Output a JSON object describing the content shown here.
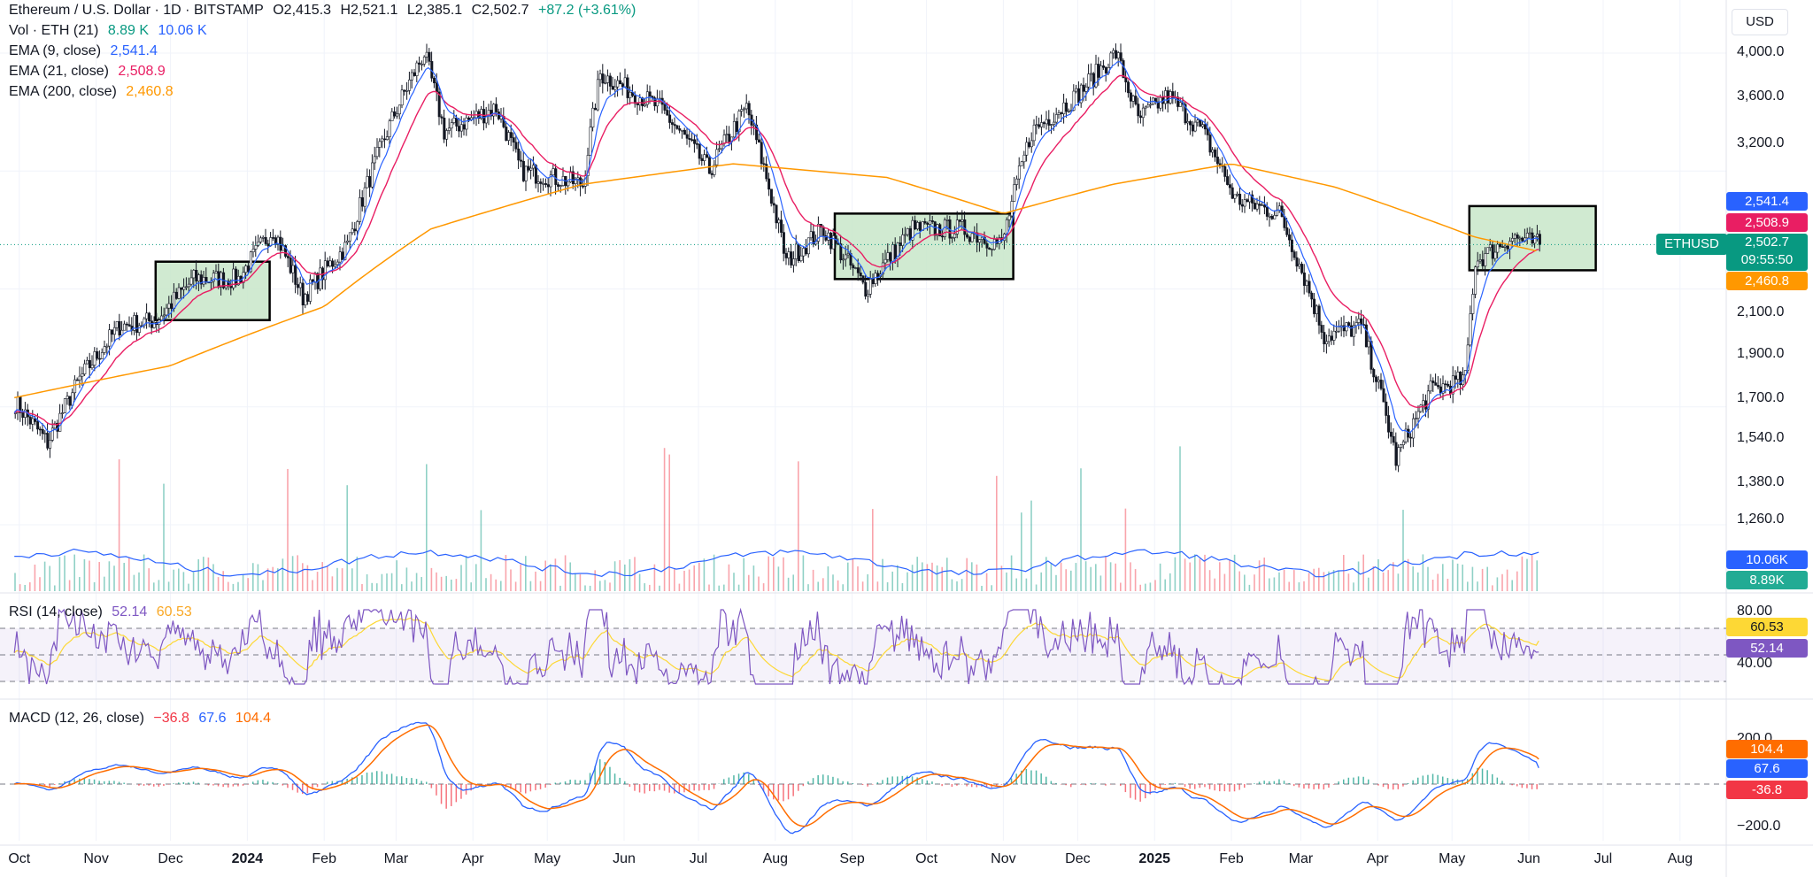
{
  "header": {
    "symbol_line": "Ethereum / U.S. Dollar · 1D · BITSTAMP",
    "open": "O2,415.3",
    "high": "H2,521.1",
    "low": "L2,385.1",
    "close": "C2,502.7",
    "change": "+87.2 (+3.61%)"
  },
  "legend": {
    "vol_label": "Vol · ETH (21)",
    "vol_value": "8.89 K",
    "vol_ma": "10.06 K",
    "ema9_label": "EMA (9, close)",
    "ema9_value": "2,541.4",
    "ema21_label": "EMA (21, close)",
    "ema21_value": "2,508.9",
    "ema200_label": "EMA (200, close)",
    "ema200_value": "2,460.8",
    "rsi_label": "RSI (14, close)",
    "rsi_value": "52.14",
    "rsi_ma": "60.53",
    "macd_label": "MACD (12, 26, close)",
    "macd_hist": "−36.8",
    "macd_line": "67.6",
    "macd_signal": "104.4"
  },
  "currency_button": "USD",
  "ethusd_tag": "ETHUSD",
  "price_badge": {
    "price": "2,502.7",
    "countdown": "09:55:50"
  },
  "badges": {
    "ema9": "2,541.4",
    "ema21": "2,508.9",
    "ema200": "2,460.8",
    "vol_ma": "10.06K",
    "vol": "8.89K",
    "rsi_ma": "60.53",
    "rsi": "52.14",
    "macd_signal": "104.4",
    "macd_line": "67.6",
    "macd_hist": "-36.8"
  },
  "price_axis": [
    "4,000.0",
    "3,600.0",
    "3,200.0",
    "2,100.0",
    "1,900.0",
    "1,700.0",
    "1,540.0",
    "1,380.0",
    "1,260.0"
  ],
  "rsi_axis": [
    "80.00",
    "40.00"
  ],
  "macd_axis": [
    "200.0",
    "−200.0"
  ],
  "time_axis": [
    {
      "label": "Oct",
      "bold": false
    },
    {
      "label": "Nov",
      "bold": false
    },
    {
      "label": "Dec",
      "bold": false
    },
    {
      "label": "2024",
      "bold": true
    },
    {
      "label": "Feb",
      "bold": false
    },
    {
      "label": "Mar",
      "bold": false
    },
    {
      "label": "Apr",
      "bold": false
    },
    {
      "label": "May",
      "bold": false
    },
    {
      "label": "Jun",
      "bold": false
    },
    {
      "label": "Jul",
      "bold": false
    },
    {
      "label": "Aug",
      "bold": false
    },
    {
      "label": "Sep",
      "bold": false
    },
    {
      "label": "Oct",
      "bold": false
    },
    {
      "label": "Nov",
      "bold": false
    },
    {
      "label": "Dec",
      "bold": false
    },
    {
      "label": "2025",
      "bold": true
    },
    {
      "label": "Feb",
      "bold": false
    },
    {
      "label": "Mar",
      "bold": false
    },
    {
      "label": "Apr",
      "bold": false
    },
    {
      "label": "May",
      "bold": false
    },
    {
      "label": "Jun",
      "bold": false
    },
    {
      "label": "Jul",
      "bold": false
    },
    {
      "label": "Aug",
      "bold": false
    }
  ],
  "colors": {
    "up": "#089981",
    "down": "#f23645",
    "ema9": "#2962ff",
    "ema21": "#e91e63",
    "ema200": "#ff9800",
    "rsi": "#7e57c2",
    "rsi_ma": "#fdd835",
    "macd": "#2962ff",
    "signal": "#ff6d00",
    "vol_ma": "#2962ff",
    "box_fill": "#c8e6c9"
  },
  "chart_data": {
    "type": "candlestick",
    "price_range": [
      1260,
      4000
    ],
    "price_points": [
      {
        "date": "2023-09-29",
        "price": 1700
      },
      {
        "date": "2023-10-12",
        "price": 1540
      },
      {
        "date": "2023-10-25",
        "price": 1800
      },
      {
        "date": "2023-11-10",
        "price": 2050
      },
      {
        "date": "2023-11-25",
        "price": 2080
      },
      {
        "date": "2023-12-10",
        "price": 2300
      },
      {
        "date": "2023-12-28",
        "price": 2300
      },
      {
        "date": "2024-01-11",
        "price": 2600
      },
      {
        "date": "2024-01-23",
        "price": 2200
      },
      {
        "date": "2024-02-10",
        "price": 2500
      },
      {
        "date": "2024-02-28",
        "price": 3400
      },
      {
        "date": "2024-03-12",
        "price": 4000
      },
      {
        "date": "2024-03-20",
        "price": 3300
      },
      {
        "date": "2024-04-10",
        "price": 3500
      },
      {
        "date": "2024-04-20",
        "price": 3000
      },
      {
        "date": "2024-05-15",
        "price": 2900
      },
      {
        "date": "2024-05-22",
        "price": 3800
      },
      {
        "date": "2024-06-15",
        "price": 3500
      },
      {
        "date": "2024-07-05",
        "price": 3000
      },
      {
        "date": "2024-07-20",
        "price": 3500
      },
      {
        "date": "2024-08-05",
        "price": 2400
      },
      {
        "date": "2024-08-20",
        "price": 2600
      },
      {
        "date": "2024-09-06",
        "price": 2250
      },
      {
        "date": "2024-09-25",
        "price": 2600
      },
      {
        "date": "2024-10-15",
        "price": 2600
      },
      {
        "date": "2024-10-31",
        "price": 2500
      },
      {
        "date": "2024-11-12",
        "price": 3300
      },
      {
        "date": "2024-11-30",
        "price": 3600
      },
      {
        "date": "2024-12-16",
        "price": 4000
      },
      {
        "date": "2024-12-25",
        "price": 3400
      },
      {
        "date": "2025-01-06",
        "price": 3600
      },
      {
        "date": "2025-01-20",
        "price": 3300
      },
      {
        "date": "2025-02-02",
        "price": 2800
      },
      {
        "date": "2025-02-20",
        "price": 2700
      },
      {
        "date": "2025-03-10",
        "price": 2000
      },
      {
        "date": "2025-03-25",
        "price": 2050
      },
      {
        "date": "2025-04-08",
        "price": 1480
      },
      {
        "date": "2025-04-22",
        "price": 1750
      },
      {
        "date": "2025-05-06",
        "price": 1800
      },
      {
        "date": "2025-05-10",
        "price": 2400
      },
      {
        "date": "2025-05-25",
        "price": 2550
      },
      {
        "date": "2025-06-05",
        "price": 2502.7
      }
    ],
    "ema200_points": [
      {
        "date": "2023-09-29",
        "price": 1720
      },
      {
        "date": "2023-12-01",
        "price": 1860
      },
      {
        "date": "2024-02-01",
        "price": 2150
      },
      {
        "date": "2024-03-15",
        "price": 2600
      },
      {
        "date": "2024-05-15",
        "price": 2900
      },
      {
        "date": "2024-07-15",
        "price": 3050
      },
      {
        "date": "2024-09-15",
        "price": 2950
      },
      {
        "date": "2024-11-01",
        "price": 2700
      },
      {
        "date": "2024-12-15",
        "price": 2900
      },
      {
        "date": "2025-02-01",
        "price": 3050
      },
      {
        "date": "2025-03-15",
        "price": 2880
      },
      {
        "date": "2025-05-10",
        "price": 2550
      },
      {
        "date": "2025-06-05",
        "price": 2460.8
      }
    ],
    "consolidation_boxes": [
      {
        "start": "2023-11-25",
        "end": "2024-01-10",
        "low": 2080,
        "high": 2400
      },
      {
        "start": "2024-08-25",
        "end": "2024-11-05",
        "low": 2300,
        "high": 2700
      },
      {
        "start": "2025-05-08",
        "end": "2025-06-28",
        "low": 2350,
        "high": 2750
      }
    ],
    "rsi_range": [
      0,
      100
    ],
    "rsi_levels": [
      70,
      50,
      30
    ],
    "macd_range": [
      -250,
      250
    ],
    "last_values": {
      "close": 2502.7,
      "ema9": 2541.4,
      "ema21": 2508.9,
      "ema200": 2460.8,
      "rsi": 52.14,
      "rsi_ma": 60.53,
      "macd": 67.6,
      "signal": 104.4,
      "hist": -36.8,
      "volume": 8890,
      "volume_ma": 10060
    }
  }
}
